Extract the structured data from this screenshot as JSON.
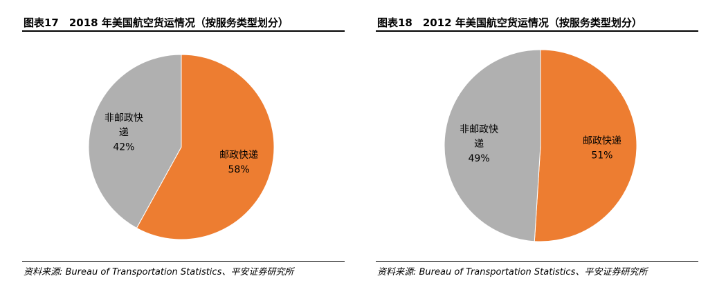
{
  "chart_data": [
    {
      "type": "pie",
      "title": "图表17　2018 年美国航空货运情况（按服务类型划分）",
      "slices": [
        {
          "label_lines": [
            "邮政快递"
          ],
          "pct_label": "58%",
          "value": 58,
          "color": "#ED7D31"
        },
        {
          "label_lines": [
            "非邮政快",
            "递"
          ],
          "pct_label": "42%",
          "value": 42,
          "color": "#B0B0B0"
        }
      ],
      "source": "资料来源: Bureau of Transportation Statistics、平安证券研究所"
    },
    {
      "type": "pie",
      "title": "图表18　2012 年美国航空货运情况（按服务类型划分）",
      "slices": [
        {
          "label_lines": [
            "邮政快递"
          ],
          "pct_label": "51%",
          "value": 51,
          "color": "#ED7D31"
        },
        {
          "label_lines": [
            "非邮政快",
            "递"
          ],
          "pct_label": "49%",
          "value": 49,
          "color": "#B0B0B0"
        }
      ],
      "source": "资料来源: Bureau of Transportation Statistics、平安证券研究所"
    }
  ]
}
